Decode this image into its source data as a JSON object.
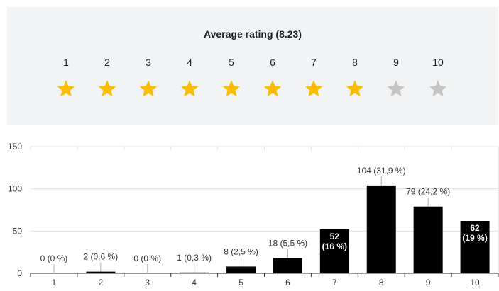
{
  "rating": {
    "title": "Average rating (8.23)",
    "average": 8.23,
    "stars": [
      {
        "label": "1",
        "filled": true
      },
      {
        "label": "2",
        "filled": true
      },
      {
        "label": "3",
        "filled": true
      },
      {
        "label": "4",
        "filled": true
      },
      {
        "label": "5",
        "filled": true
      },
      {
        "label": "6",
        "filled": true
      },
      {
        "label": "7",
        "filled": true
      },
      {
        "label": "8",
        "filled": true
      },
      {
        "label": "9",
        "filled": false
      },
      {
        "label": "10",
        "filled": false
      }
    ],
    "star_color_filled": "#fbbc04",
    "star_color_empty": "#c4c4c4"
  },
  "chart_data": {
    "type": "bar",
    "title": "",
    "xlabel": "",
    "ylabel": "",
    "categories": [
      "1",
      "2",
      "3",
      "4",
      "5",
      "6",
      "7",
      "8",
      "9",
      "10"
    ],
    "values": [
      0,
      2,
      0,
      1,
      8,
      18,
      52,
      104,
      79,
      62
    ],
    "data_labels": [
      "0 (0 %)",
      "2 (0,6 %)",
      "0 (0 %)",
      "1 (0,3 %)",
      "8 (2,5 %)",
      "18 (5,5 %)",
      "52\n(16 %)",
      "104 (31,9 %)",
      "79 (24,2 %)",
      "62\n(19 %)"
    ],
    "label_inside": [
      false,
      false,
      false,
      false,
      false,
      false,
      true,
      false,
      false,
      true
    ],
    "yticks": [
      0,
      50,
      100,
      150
    ],
    "ylim": [
      0,
      150
    ],
    "grid": true,
    "bar_color": "#000000"
  }
}
